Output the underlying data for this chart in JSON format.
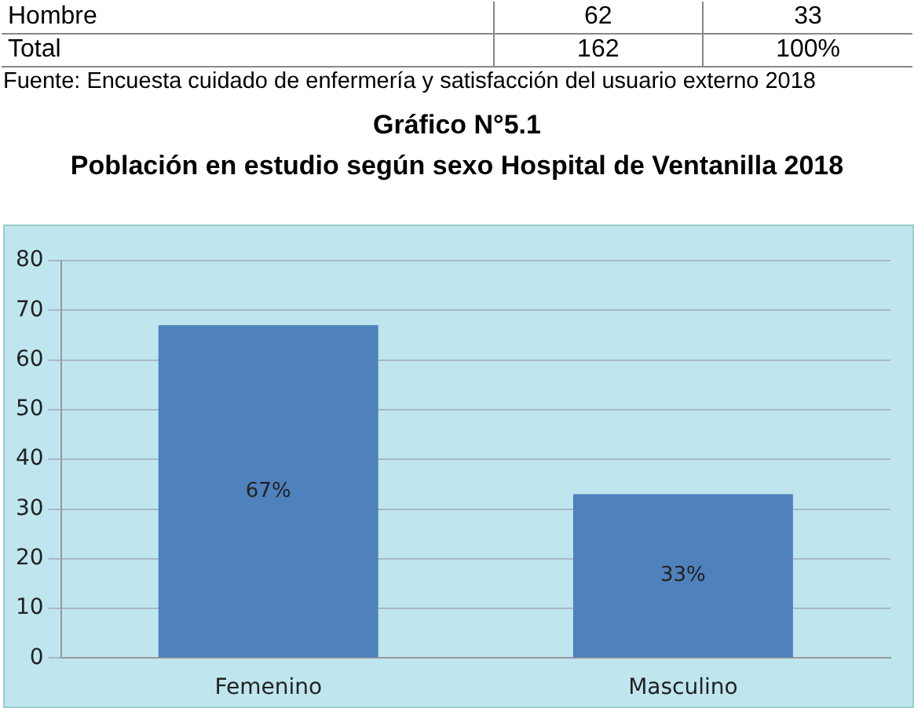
{
  "chart_data": {
    "type": "bar",
    "title": "Gráfico N°5.1",
    "subtitle": "Población en estudio según sexo Hospital de Ventanilla 2018",
    "annotations": [
      "Hombre",
      "62",
      "33",
      "Total",
      "162",
      "100%",
      "Fuente: Encuesta cuidado de enfermería y satisfacción del usuario  externo   2018"
    ],
    "categories": [
      "Femenino",
      "Masculino"
    ],
    "values": [
      67,
      33
    ],
    "value_labels": [
      "67%",
      "33%"
    ],
    "color": "#4f81bd",
    "ylim": [
      0,
      80
    ],
    "yticks": [
      0,
      10,
      20,
      30,
      40,
      50,
      60,
      70,
      80
    ],
    "grid": "y"
  }
}
